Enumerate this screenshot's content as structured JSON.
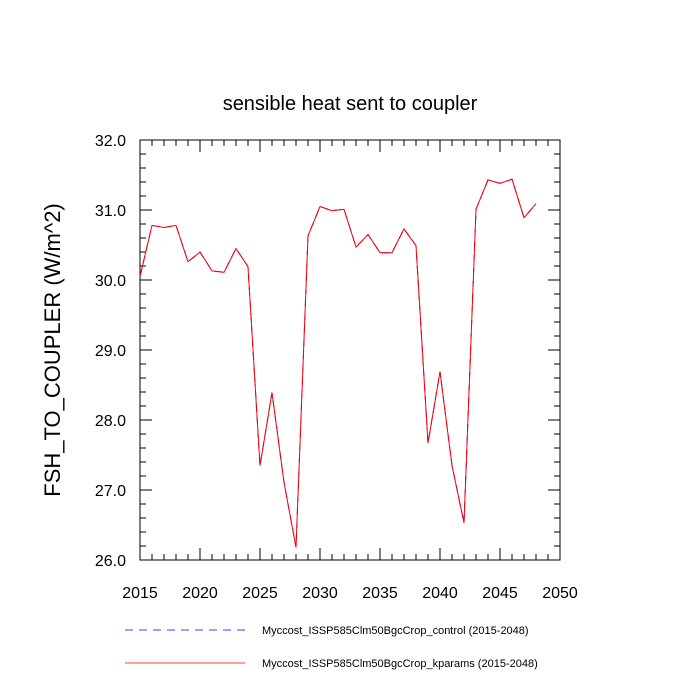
{
  "chart_data": {
    "type": "line",
    "title": "sensible heat sent to coupler",
    "xlabel": "",
    "ylabel": "FSH_TO_COUPLER  (W/m^2)",
    "xlim": [
      2015,
      2050
    ],
    "ylim": [
      26.0,
      32.0
    ],
    "x_ticks": [
      "2015",
      "2020",
      "2025",
      "2030",
      "2035",
      "2040",
      "2045",
      "2050"
    ],
    "y_ticks": [
      "26.0",
      "27.0",
      "28.0",
      "29.0",
      "30.0",
      "31.0",
      "32.0"
    ],
    "grid": false,
    "legend_position": "bottom",
    "x": [
      2015,
      2016,
      2017,
      2018,
      2019,
      2020,
      2021,
      2022,
      2023,
      2024,
      2025,
      2026,
      2027,
      2028,
      2029,
      2030,
      2031,
      2032,
      2033,
      2034,
      2035,
      2036,
      2037,
      2038,
      2039,
      2040,
      2041,
      2042,
      2043,
      2044,
      2045,
      2046,
      2047,
      2048
    ],
    "series": [
      {
        "name": "Myccost_ISSP585Clm50BgcCrop_control (2015-2048)",
        "color": "#0000ff",
        "style": "dashed",
        "values": [
          30.05,
          30.78,
          30.75,
          30.78,
          30.26,
          30.4,
          30.13,
          30.11,
          30.45,
          30.19,
          27.35,
          28.39,
          27.11,
          26.18,
          30.63,
          31.05,
          30.99,
          31.01,
          30.47,
          30.65,
          30.39,
          30.39,
          30.73,
          30.49,
          27.67,
          28.69,
          27.35,
          26.53,
          31.01,
          31.43,
          31.38,
          31.44,
          30.89,
          31.09
        ]
      },
      {
        "name": "Myccost_ISSP585Clm50BgcCrop_kparams (2015-2048)",
        "color": "#ff0000",
        "style": "solid",
        "values": [
          30.05,
          30.78,
          30.75,
          30.78,
          30.26,
          30.4,
          30.13,
          30.11,
          30.45,
          30.19,
          27.35,
          28.39,
          27.11,
          26.18,
          30.63,
          31.05,
          30.99,
          31.01,
          30.47,
          30.65,
          30.39,
          30.39,
          30.73,
          30.49,
          27.67,
          28.69,
          27.35,
          26.53,
          31.01,
          31.43,
          31.38,
          31.44,
          30.89,
          31.09
        ]
      }
    ]
  }
}
